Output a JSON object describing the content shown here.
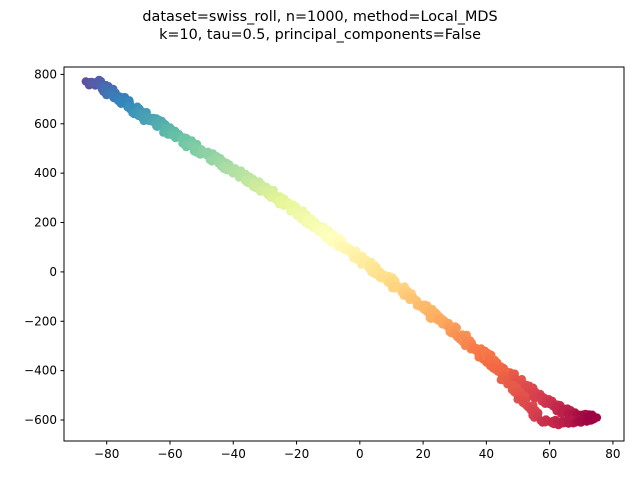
{
  "chart_data": {
    "type": "scatter",
    "title_lines": [
      "dataset=swiss_roll, n=1000, method=Local_MDS",
      "k=10, tau=0.5, principal_components=False"
    ],
    "xlabel": "",
    "ylabel": "",
    "xlim": [
      -93.5,
      83.5
    ],
    "ylim": [
      -685,
      830
    ],
    "xticks": [
      -80,
      -60,
      -40,
      -20,
      0,
      20,
      40,
      60,
      80
    ],
    "yticks": [
      -600,
      -400,
      -200,
      0,
      200,
      400,
      600,
      800
    ],
    "grid": false,
    "legend": "none",
    "colormap": "Spectral_r",
    "point_count": 1000,
    "point_color_range": [
      "#5e4fa2",
      "#9e0142"
    ],
    "embedding_trace": [
      [
        -85,
        762
      ],
      [
        -83,
        770
      ],
      [
        -80,
        740
      ],
      [
        -77,
        710
      ],
      [
        -74,
        680
      ],
      [
        -70,
        650
      ],
      [
        -66,
        617
      ],
      [
        -62,
        584
      ],
      [
        -58,
        552
      ],
      [
        -54,
        520
      ],
      [
        -50,
        490
      ],
      [
        -46,
        460
      ],
      [
        -42,
        428
      ],
      [
        -38,
        396
      ],
      [
        -34,
        364
      ],
      [
        -30,
        332
      ],
      [
        -26,
        298
      ],
      [
        -22,
        264
      ],
      [
        -18,
        228
      ],
      [
        -14,
        190
      ],
      [
        -10,
        152
      ],
      [
        -6,
        113
      ],
      [
        -2,
        74
      ],
      [
        2,
        36
      ],
      [
        6,
        -3
      ],
      [
        10,
        -42
      ],
      [
        14,
        -82
      ],
      [
        18,
        -122
      ],
      [
        22,
        -162
      ],
      [
        26,
        -202
      ],
      [
        30,
        -243
      ],
      [
        34,
        -285
      ],
      [
        38,
        -326
      ],
      [
        42,
        -368
      ],
      [
        46,
        -408
      ],
      [
        50,
        -446
      ],
      [
        54,
        -484
      ],
      [
        58,
        -518
      ],
      [
        62,
        -548
      ],
      [
        66,
        -572
      ],
      [
        70,
        -586
      ],
      [
        74,
        -588
      ]
    ],
    "lower_branch": [
      [
        40,
        -330
      ],
      [
        43,
        -380
      ],
      [
        46,
        -430
      ],
      [
        49,
        -480
      ],
      [
        52,
        -530
      ],
      [
        55,
        -570
      ],
      [
        58,
        -600
      ],
      [
        62,
        -612
      ],
      [
        66,
        -608
      ],
      [
        70,
        -600
      ],
      [
        74,
        -592
      ]
    ]
  }
}
